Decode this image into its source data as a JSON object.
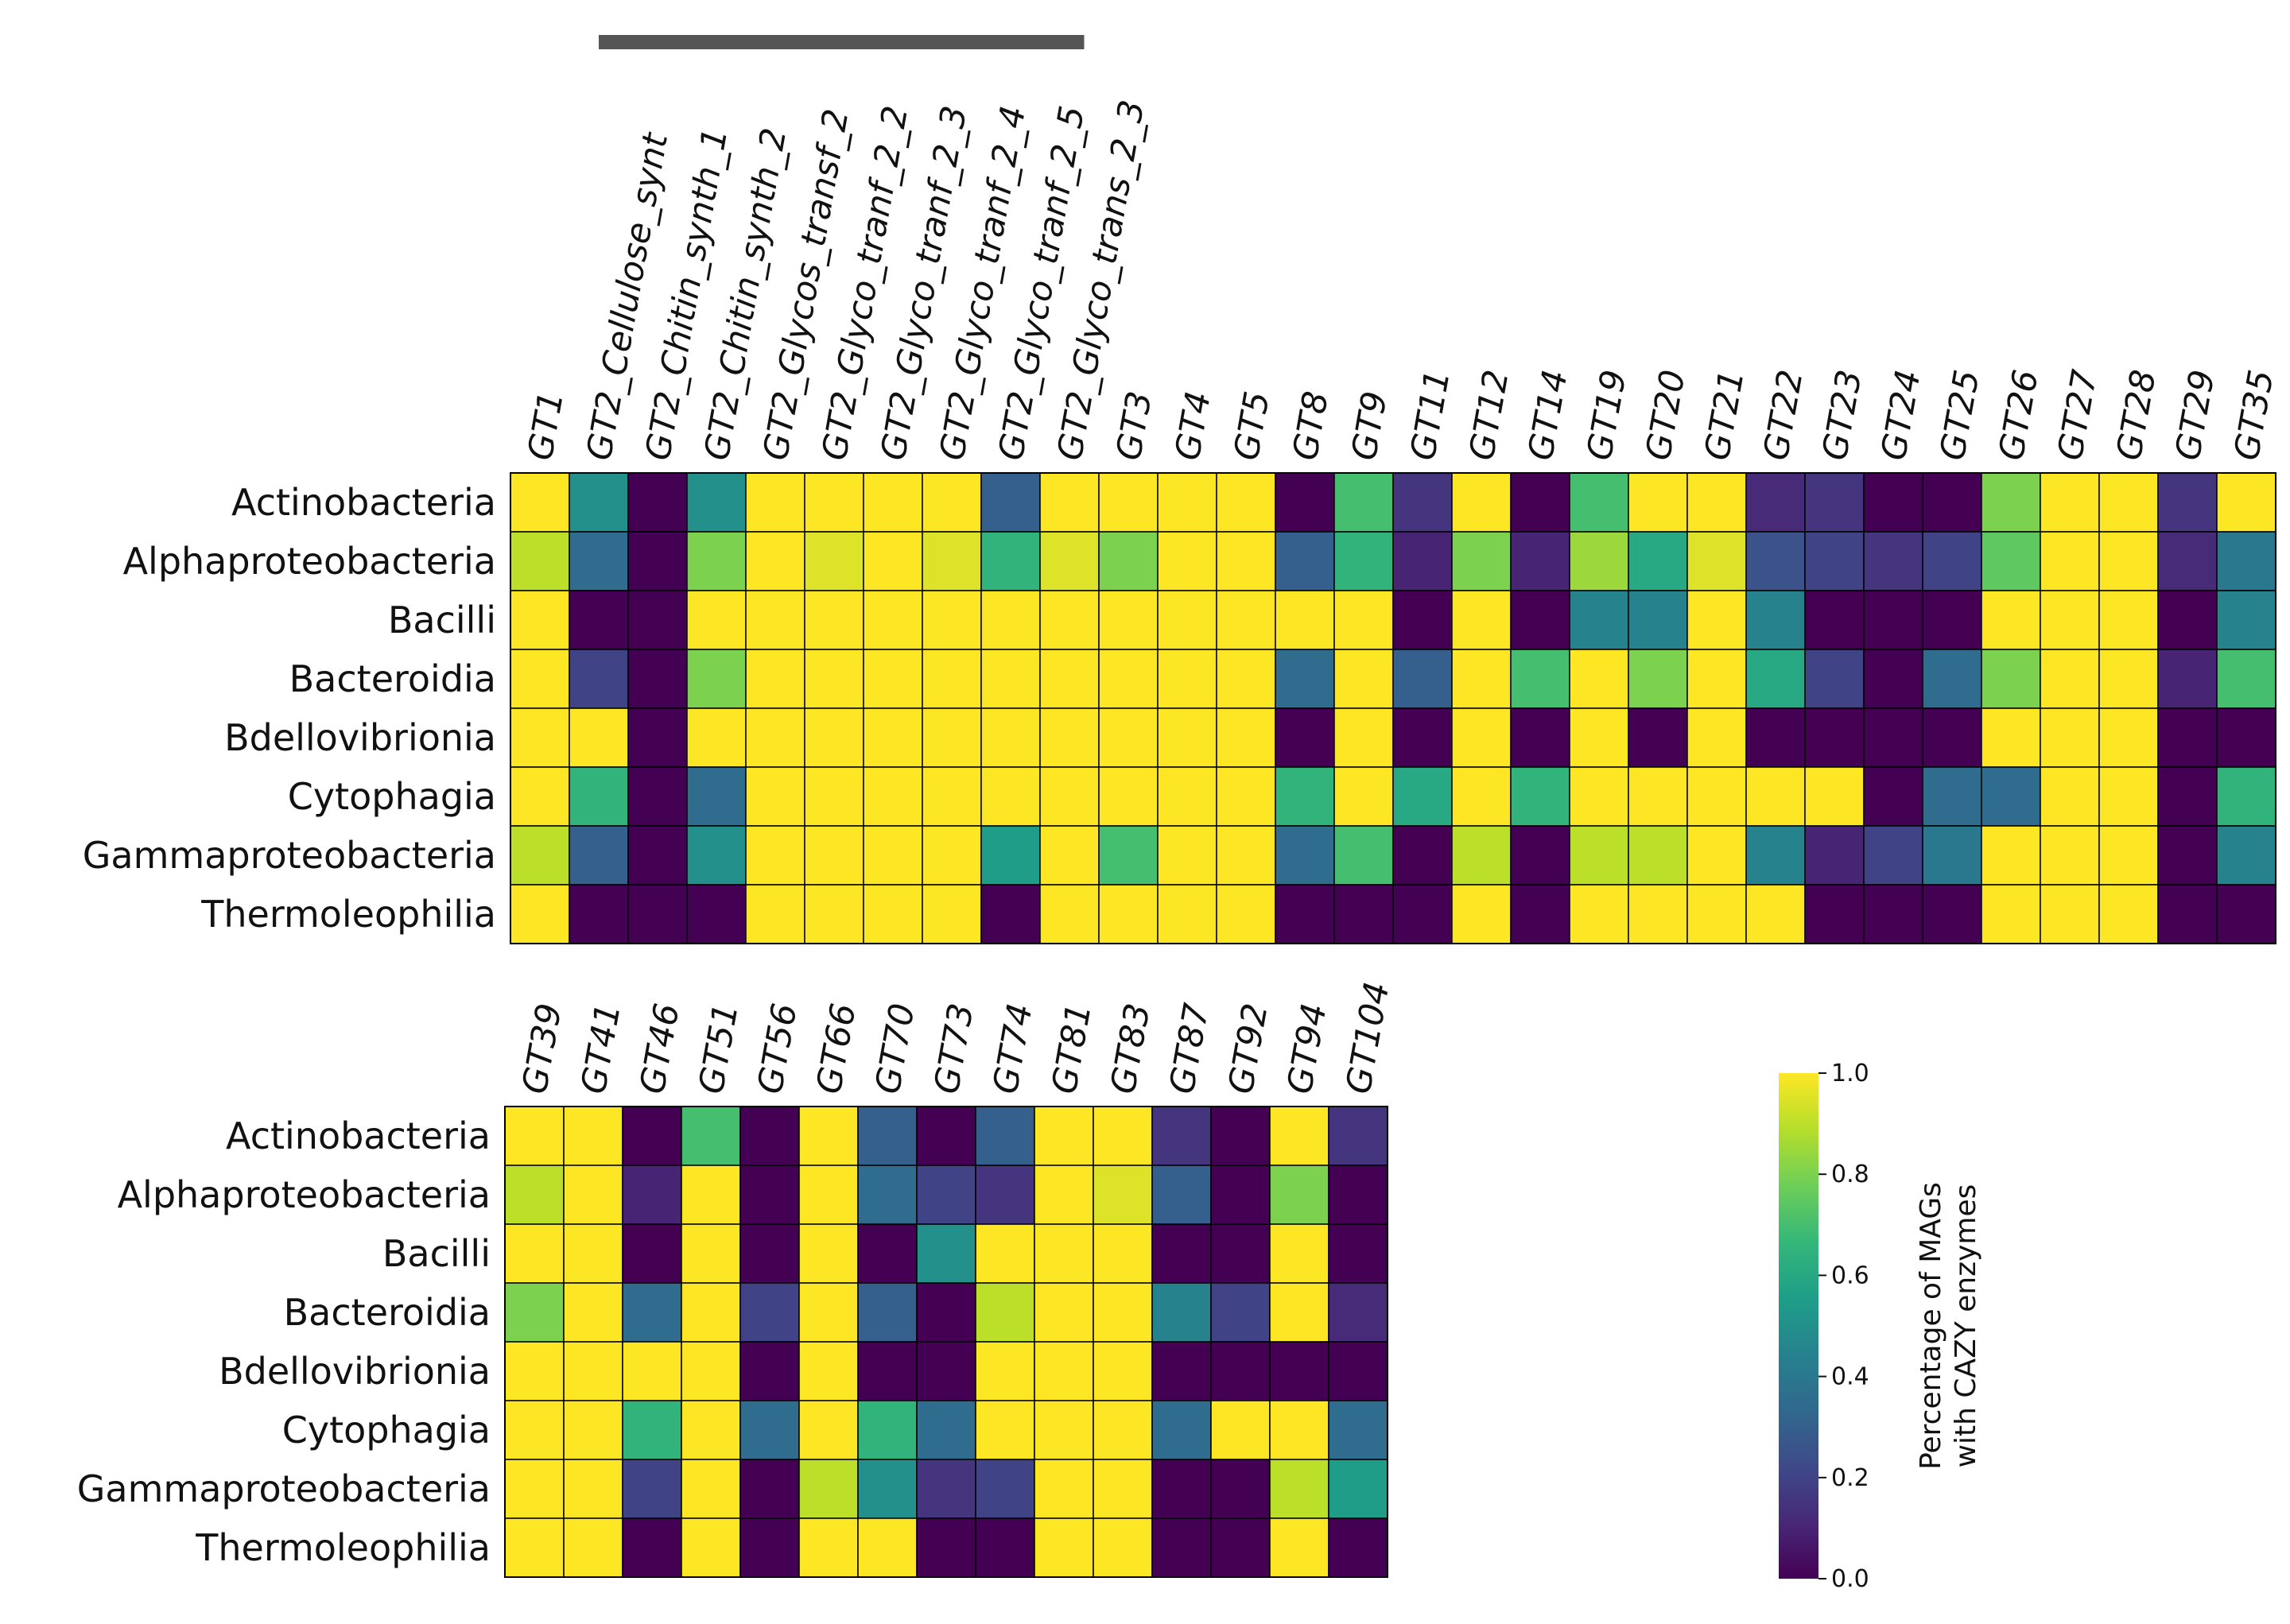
{
  "chart_data": [
    {
      "type": "heatmap",
      "title": "",
      "xlabel": "",
      "ylabel": "",
      "rows": [
        "Actinobacteria",
        "Alphaproteobacteria",
        "Bacilli",
        "Bacteroidia",
        "Bdellovibrionia",
        "Cytophagia",
        "Gammaproteobacteria",
        "Thermoleophilia"
      ],
      "columns": [
        "GT1",
        "GT2_Cellulose_synt",
        "GT2_Chitin_synth_1",
        "GT2_Chitin_synth_2",
        "GT2_Glycos_transf_2",
        "GT2_Glyco_tranf_2_2",
        "GT2_Glyco_tranf_2_3",
        "GT2_Glyco_tranf_2_4",
        "GT2_Glyco_tranf_2_5",
        "GT2_Glyco_trans_2_3",
        "GT3",
        "GT4",
        "GT5",
        "GT8",
        "GT9",
        "GT11",
        "GT12",
        "GT14",
        "GT19",
        "GT20",
        "GT21",
        "GT22",
        "GT23",
        "GT24",
        "GT25",
        "GT26",
        "GT27",
        "GT28",
        "GT29",
        "GT35"
      ],
      "grouped_columns": [
        "GT2_Cellulose_synt",
        "GT2_Chitin_synth_1",
        "GT2_Chitin_synth_2",
        "GT2_Glycos_transf_2",
        "GT2_Glyco_tranf_2_2",
        "GT2_Glyco_tranf_2_3",
        "GT2_Glyco_tranf_2_4",
        "GT2_Glyco_tranf_2_5",
        "GT2_Glyco_trans_2_3"
      ],
      "values": [
        [
          1.0,
          0.5,
          0.0,
          0.5,
          1.0,
          1.0,
          1.0,
          1.0,
          0.3,
          1.0,
          1.0,
          1.0,
          1.0,
          0.0,
          0.7,
          0.15,
          1.0,
          0.0,
          0.7,
          1.0,
          1.0,
          0.12,
          0.15,
          0.0,
          0.0,
          0.8,
          1.0,
          1.0,
          0.15,
          1.0
        ],
        [
          0.9,
          0.35,
          0.0,
          0.8,
          1.0,
          0.95,
          1.0,
          0.95,
          0.65,
          0.95,
          0.8,
          1.0,
          1.0,
          0.3,
          0.65,
          0.1,
          0.8,
          0.1,
          0.85,
          0.6,
          0.95,
          0.25,
          0.2,
          0.15,
          0.2,
          0.75,
          1.0,
          1.0,
          0.12,
          0.4
        ],
        [
          1.0,
          0.0,
          0.0,
          1.0,
          1.0,
          1.0,
          1.0,
          1.0,
          1.0,
          1.0,
          1.0,
          1.0,
          1.0,
          1.0,
          1.0,
          0.0,
          1.0,
          0.0,
          0.45,
          0.45,
          1.0,
          0.45,
          0.0,
          0.0,
          0.0,
          1.0,
          1.0,
          1.0,
          0.0,
          0.45
        ],
        [
          1.0,
          0.2,
          0.0,
          0.8,
          1.0,
          1.0,
          1.0,
          1.0,
          1.0,
          1.0,
          1.0,
          1.0,
          1.0,
          0.35,
          1.0,
          0.3,
          1.0,
          0.7,
          1.0,
          0.8,
          1.0,
          0.6,
          0.2,
          0.0,
          0.35,
          0.8,
          1.0,
          1.0,
          0.1,
          0.7
        ],
        [
          1.0,
          1.0,
          0.0,
          1.0,
          1.0,
          1.0,
          1.0,
          1.0,
          1.0,
          1.0,
          1.0,
          1.0,
          1.0,
          0.0,
          1.0,
          0.0,
          1.0,
          0.0,
          1.0,
          0.0,
          1.0,
          0.0,
          0.0,
          0.0,
          0.0,
          1.0,
          1.0,
          1.0,
          0.0,
          0.0
        ],
        [
          1.0,
          0.65,
          0.0,
          0.35,
          1.0,
          1.0,
          1.0,
          1.0,
          1.0,
          1.0,
          1.0,
          1.0,
          1.0,
          0.65,
          1.0,
          0.6,
          1.0,
          0.65,
          1.0,
          1.0,
          1.0,
          1.0,
          1.0,
          0.0,
          0.35,
          0.35,
          1.0,
          1.0,
          0.0,
          0.65
        ],
        [
          0.9,
          0.3,
          0.0,
          0.5,
          1.0,
          1.0,
          1.0,
          1.0,
          0.55,
          1.0,
          0.7,
          1.0,
          1.0,
          0.35,
          0.7,
          0.0,
          0.9,
          0.0,
          0.9,
          0.9,
          1.0,
          0.45,
          0.1,
          0.2,
          0.4,
          1.0,
          1.0,
          1.0,
          0.0,
          0.45
        ],
        [
          1.0,
          0.0,
          0.0,
          0.0,
          1.0,
          1.0,
          1.0,
          1.0,
          0.0,
          1.0,
          1.0,
          1.0,
          1.0,
          0.0,
          0.0,
          0.0,
          1.0,
          0.0,
          1.0,
          1.0,
          1.0,
          1.0,
          0.0,
          0.0,
          0.0,
          1.0,
          1.0,
          1.0,
          0.0,
          0.0
        ]
      ]
    },
    {
      "type": "heatmap",
      "title": "",
      "xlabel": "",
      "ylabel": "",
      "rows": [
        "Actinobacteria",
        "Alphaproteobacteria",
        "Bacilli",
        "Bacteroidia",
        "Bdellovibrionia",
        "Cytophagia",
        "Gammaproteobacteria",
        "Thermoleophilia"
      ],
      "columns": [
        "GT39",
        "GT41",
        "GT46",
        "GT51",
        "GT56",
        "GT66",
        "GT70",
        "GT73",
        "GT74",
        "GT81",
        "GT83",
        "GT87",
        "GT92",
        "GT94",
        "GT104"
      ],
      "values": [
        [
          1.0,
          1.0,
          0.0,
          0.7,
          0.0,
          1.0,
          0.3,
          0.0,
          0.3,
          1.0,
          1.0,
          0.15,
          0.0,
          1.0,
          0.15
        ],
        [
          0.9,
          1.0,
          0.1,
          1.0,
          0.0,
          1.0,
          0.35,
          0.2,
          0.15,
          1.0,
          0.95,
          0.3,
          0.0,
          0.8,
          0.0
        ],
        [
          1.0,
          1.0,
          0.0,
          1.0,
          0.0,
          1.0,
          0.0,
          0.5,
          1.0,
          1.0,
          1.0,
          0.0,
          0.0,
          1.0,
          0.0
        ],
        [
          0.8,
          1.0,
          0.35,
          1.0,
          0.2,
          1.0,
          0.3,
          0.0,
          0.9,
          1.0,
          1.0,
          0.45,
          0.2,
          1.0,
          0.12
        ],
        [
          1.0,
          1.0,
          1.0,
          1.0,
          0.0,
          1.0,
          0.0,
          0.0,
          1.0,
          1.0,
          1.0,
          0.0,
          0.0,
          0.0,
          0.0
        ],
        [
          1.0,
          1.0,
          0.65,
          1.0,
          0.35,
          1.0,
          0.65,
          0.35,
          1.0,
          1.0,
          1.0,
          0.35,
          1.0,
          1.0,
          0.35
        ],
        [
          1.0,
          1.0,
          0.2,
          1.0,
          0.0,
          0.9,
          0.5,
          0.15,
          0.2,
          1.0,
          1.0,
          0.0,
          0.0,
          0.9,
          0.55
        ],
        [
          1.0,
          1.0,
          0.0,
          1.0,
          0.0,
          1.0,
          1.0,
          0.0,
          0.0,
          1.0,
          1.0,
          0.0,
          0.0,
          1.0,
          0.0
        ]
      ]
    }
  ],
  "colorbar": {
    "label_line1": "Percentage of MAGs",
    "label_line2": "with CAZY enzymes",
    "ticks": [
      "0.0",
      "0.2",
      "0.4",
      "0.6",
      "0.8",
      "1.0"
    ],
    "range": [
      0,
      1
    ]
  },
  "colors": {
    "viridis": [
      "#440154",
      "#482878",
      "#3e4a89",
      "#31688e",
      "#26828e",
      "#1f9e89",
      "#35b779",
      "#6ece58",
      "#b5de2b",
      "#fde725"
    ],
    "gridline": "#000000",
    "group_bar": "#555555"
  }
}
